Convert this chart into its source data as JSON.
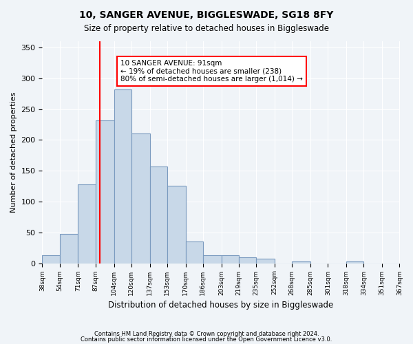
{
  "title": "10, SANGER AVENUE, BIGGLESWADE, SG18 8FY",
  "subtitle": "Size of property relative to detached houses in Biggleswade",
  "xlabel": "Distribution of detached houses by size in Biggleswade",
  "ylabel": "Number of detached properties",
  "bar_color": "#c8d8e8",
  "bar_edge_color": "#7a9abf",
  "vline_x": 91,
  "vline_color": "red",
  "annotation_title": "10 SANGER AVENUE: 91sqm",
  "annotation_line2": "← 19% of detached houses are smaller (238)",
  "annotation_line3": "80% of semi-detached houses are larger (1,014) →",
  "bin_edges": [
    38,
    54,
    71,
    87,
    104,
    120,
    137,
    153,
    170,
    186,
    203,
    219,
    235,
    252,
    268,
    285,
    301,
    318,
    334,
    351,
    367
  ],
  "bar_heights": [
    13,
    47,
    128,
    232,
    282,
    210,
    157,
    126,
    35,
    13,
    13,
    10,
    7,
    0,
    3,
    0,
    0,
    3,
    0,
    0
  ],
  "ylim": [
    0,
    360
  ],
  "yticks": [
    0,
    50,
    100,
    150,
    200,
    250,
    300,
    350
  ],
  "background_color": "#f0f4f8",
  "footnote1": "Contains HM Land Registry data © Crown copyright and database right 2024.",
  "footnote2": "Contains public sector information licensed under the Open Government Licence v3.0."
}
